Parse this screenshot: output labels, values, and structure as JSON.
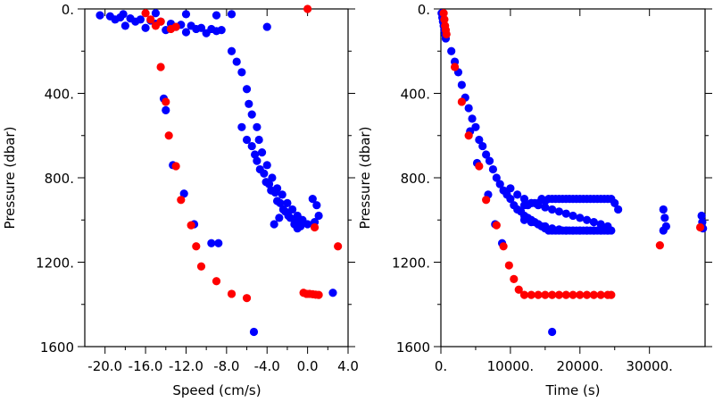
{
  "chart_data": [
    {
      "type": "scatter",
      "xlabel": "Speed (cm/s)",
      "ylabel": "Pressure (dbar)",
      "xlim": [
        -22.0,
        4.0
      ],
      "ylim": [
        0,
        1600
      ],
      "y_inverted": true,
      "x_tick_labels": [
        "-20.0",
        "-16.0",
        "-12.0",
        "-8.0",
        "-4.0",
        "0.0",
        "4.0"
      ],
      "x_tick_values": [
        -20,
        -16,
        -12,
        -8,
        -4,
        0,
        4
      ],
      "y_tick_labels": [
        "0.",
        "400.",
        "800.",
        "1200.",
        "1600"
      ],
      "y_tick_values": [
        0,
        400,
        800,
        1200,
        1600
      ],
      "grid": false,
      "series": [
        {
          "color": "#0000ff",
          "points": [
            [
              -20.5,
              30
            ],
            [
              -19.5,
              35
            ],
            [
              -18.5,
              40
            ],
            [
              -17.5,
              45
            ],
            [
              -16.5,
              50
            ],
            [
              -15.5,
              55
            ],
            [
              -14.5,
              60
            ],
            [
              -13.5,
              70
            ],
            [
              -12.5,
              75
            ],
            [
              -11.5,
              80
            ],
            [
              -10.5,
              90
            ],
            [
              -9.5,
              95
            ],
            [
              -8.5,
              100
            ],
            [
              -18,
              80
            ],
            [
              -16,
              90
            ],
            [
              -14,
              100
            ],
            [
              -12,
              110
            ],
            [
              -10,
              115
            ],
            [
              -17,
              60
            ],
            [
              -15,
              70
            ],
            [
              -13,
              85
            ],
            [
              -11,
              95
            ],
            [
              -9,
              105
            ],
            [
              -19,
              50
            ],
            [
              -18.2,
              25
            ],
            [
              -15,
              20
            ],
            [
              -12,
              25
            ],
            [
              -9,
              30
            ],
            [
              -7.5,
              25
            ],
            [
              -4,
              85
            ],
            [
              -14.2,
              425
            ],
            [
              -14.0,
              480
            ],
            [
              -13.3,
              740
            ],
            [
              -12.2,
              875
            ],
            [
              -11.2,
              1020
            ],
            [
              -9.5,
              1110
            ],
            [
              -8.8,
              1110
            ],
            [
              -5.3,
              1530
            ],
            [
              -7.5,
              200
            ],
            [
              -7.0,
              250
            ],
            [
              -6.5,
              300
            ],
            [
              -6.0,
              380
            ],
            [
              -5.8,
              450
            ],
            [
              -5.5,
              500
            ],
            [
              -5.0,
              560
            ],
            [
              -4.8,
              620
            ],
            [
              -4.5,
              680
            ],
            [
              -4.0,
              740
            ],
            [
              -3.5,
              800
            ],
            [
              -3.0,
              850
            ],
            [
              -2.5,
              880
            ],
            [
              -2.0,
              920
            ],
            [
              -1.5,
              950
            ],
            [
              -1.0,
              980
            ],
            [
              -0.5,
              1000
            ],
            [
              0.0,
              1020
            ],
            [
              -5.5,
              650
            ],
            [
              -5.0,
              720
            ],
            [
              -4.3,
              780
            ],
            [
              -3.8,
              830
            ],
            [
              -3.2,
              870
            ],
            [
              -2.7,
              920
            ],
            [
              -2.2,
              960
            ],
            [
              -1.7,
              990
            ],
            [
              -1.2,
              1010
            ],
            [
              -0.7,
              1030
            ],
            [
              -6.5,
              560
            ],
            [
              -6.0,
              620
            ],
            [
              -5.2,
              690
            ],
            [
              -4.7,
              760
            ],
            [
              -4.1,
              820
            ],
            [
              -3.6,
              860
            ],
            [
              -3.0,
              910
            ],
            [
              -2.4,
              950
            ],
            [
              -1.9,
              980
            ],
            [
              -1.3,
              1020
            ],
            [
              0.5,
              900
            ],
            [
              0.9,
              930
            ],
            [
              1.1,
              980
            ],
            [
              0.7,
              1010
            ],
            [
              -2.8,
              990
            ],
            [
              -3.3,
              1020
            ],
            [
              2.5,
              1345
            ],
            [
              -1.0,
              1040
            ]
          ]
        },
        {
          "color": "#ff0000",
          "points": [
            [
              -16,
              20
            ],
            [
              -15.5,
              50
            ],
            [
              -15,
              80
            ],
            [
              -14.5,
              60
            ],
            [
              -13.5,
              95
            ],
            [
              -13,
              85
            ],
            [
              -14.5,
              275
            ],
            [
              -14.0,
              440
            ],
            [
              -13.7,
              600
            ],
            [
              -13.0,
              745
            ],
            [
              -12.5,
              905
            ],
            [
              -11.5,
              1025
            ],
            [
              -11.0,
              1125
            ],
            [
              -10.5,
              1220
            ],
            [
              -9.0,
              1290
            ],
            [
              -7.5,
              1350
            ],
            [
              -6.0,
              1370
            ],
            [
              0.0,
              0
            ],
            [
              -0.4,
              1345
            ],
            [
              -0.1,
              1350
            ],
            [
              0.2,
              1350
            ],
            [
              0.5,
              1352
            ],
            [
              0.8,
              1354
            ],
            [
              1.1,
              1355
            ],
            [
              0.7,
              1035
            ],
            [
              3.0,
              1125
            ]
          ]
        }
      ]
    },
    {
      "type": "scatter",
      "xlabel": "Time (s)",
      "ylabel": "Pressure (dbar)",
      "xlim": [
        0,
        38000
      ],
      "ylim": [
        0,
        1600
      ],
      "y_inverted": true,
      "x_tick_labels": [
        "0.",
        "10000.",
        "20000.",
        "30000."
      ],
      "x_tick_values": [
        0,
        10000,
        20000,
        30000
      ],
      "y_tick_labels": [
        "0.",
        "400.",
        "800.",
        "1200.",
        "1600"
      ],
      "y_tick_values": [
        0,
        400,
        800,
        1200,
        1600
      ],
      "grid": false,
      "series": [
        {
          "color": "#0000ff",
          "points": [
            [
              100,
              20
            ],
            [
              200,
              40
            ],
            [
              300,
              60
            ],
            [
              400,
              80
            ],
            [
              500,
              100
            ],
            [
              600,
              120
            ],
            [
              700,
              140
            ],
            [
              1500,
              200
            ],
            [
              2000,
              250
            ],
            [
              2500,
              300
            ],
            [
              3000,
              360
            ],
            [
              3500,
              420
            ],
            [
              4000,
              470
            ],
            [
              4500,
              520
            ],
            [
              5000,
              560
            ],
            [
              5500,
              620
            ],
            [
              6000,
              650
            ],
            [
              6500,
              690
            ],
            [
              7000,
              720
            ],
            [
              7500,
              760
            ],
            [
              8000,
              800
            ],
            [
              8500,
              830
            ],
            [
              9000,
              860
            ],
            [
              9500,
              880
            ],
            [
              10000,
              900
            ],
            [
              10500,
              930
            ],
            [
              11000,
              950
            ],
            [
              11500,
              960
            ],
            [
              12000,
              980
            ],
            [
              12500,
              990
            ],
            [
              13000,
              1000
            ],
            [
              13500,
              1010
            ],
            [
              14000,
              1020
            ],
            [
              14500,
              1030
            ],
            [
              15000,
              1040
            ],
            [
              15500,
              1050
            ],
            [
              16000,
              1050
            ],
            [
              16500,
              1050
            ],
            [
              17000,
              1050
            ],
            [
              17500,
              1050
            ],
            [
              18000,
              1050
            ],
            [
              18500,
              1050
            ],
            [
              19000,
              1050
            ],
            [
              19500,
              1050
            ],
            [
              20000,
              1050
            ],
            [
              20500,
              1050
            ],
            [
              21000,
              1050
            ],
            [
              21500,
              1050
            ],
            [
              22000,
              1050
            ],
            [
              22500,
              1050
            ],
            [
              23000,
              1050
            ],
            [
              23500,
              1050
            ],
            [
              24000,
              1050
            ],
            [
              24500,
              1050
            ],
            [
              10000,
              850
            ],
            [
              11000,
              880
            ],
            [
              12000,
              900
            ],
            [
              13000,
              920
            ],
            [
              14000,
              930
            ],
            [
              15000,
              940
            ],
            [
              16000,
              950
            ],
            [
              17000,
              960
            ],
            [
              18000,
              970
            ],
            [
              19000,
              980
            ],
            [
              20000,
              990
            ],
            [
              21000,
              1000
            ],
            [
              22000,
              1010
            ],
            [
              23000,
              1020
            ],
            [
              24000,
              1030
            ],
            [
              12000,
              1000
            ],
            [
              13000,
              1010
            ],
            [
              14000,
              1020
            ],
            [
              15000,
              1030
            ],
            [
              16000,
              1040
            ],
            [
              17000,
              1045
            ],
            [
              18000,
              1050
            ],
            [
              19000,
              1050
            ],
            [
              20000,
              1050
            ],
            [
              21000,
              1050
            ],
            [
              22000,
              1050
            ],
            [
              23000,
              1050
            ],
            [
              24000,
              1050
            ],
            [
              25000,
              920
            ],
            [
              24500,
              900
            ],
            [
              24000,
              900
            ],
            [
              23500,
              900
            ],
            [
              23000,
              900
            ],
            [
              22500,
              900
            ],
            [
              22000,
              900
            ],
            [
              21500,
              900
            ],
            [
              21000,
              900
            ],
            [
              20500,
              900
            ],
            [
              20000,
              900
            ],
            [
              19500,
              900
            ],
            [
              19000,
              900
            ],
            [
              18500,
              900
            ],
            [
              18000,
              900
            ],
            [
              17500,
              900
            ],
            [
              17000,
              900
            ],
            [
              16500,
              900
            ],
            [
              16000,
              900
            ],
            [
              15500,
              900
            ],
            [
              15000,
              910
            ],
            [
              14500,
              900
            ],
            [
              14000,
              920
            ],
            [
              13500,
              920
            ],
            [
              13000,
              920
            ],
            [
              12500,
              930
            ],
            [
              12000,
              930
            ],
            [
              25500,
              950
            ],
            [
              32000,
              950
            ],
            [
              32200,
              990
            ],
            [
              32400,
              1030
            ],
            [
              32000,
              1050
            ],
            [
              37500,
              980
            ],
            [
              37600,
              1010
            ],
            [
              37700,
              1040
            ],
            [
              4200,
              580
            ],
            [
              5200,
              730
            ],
            [
              6800,
              880
            ],
            [
              7800,
              1020
            ],
            [
              8800,
              1110
            ],
            [
              16000,
              1530
            ]
          ]
        },
        {
          "color": "#ff0000",
          "points": [
            [
              400,
              20
            ],
            [
              500,
              50
            ],
            [
              600,
              80
            ],
            [
              700,
              100
            ],
            [
              800,
              120
            ],
            [
              2000,
              275
            ],
            [
              3000,
              440
            ],
            [
              4000,
              600
            ],
            [
              5500,
              745
            ],
            [
              6500,
              905
            ],
            [
              8000,
              1025
            ],
            [
              9000,
              1125
            ],
            [
              9800,
              1215
            ],
            [
              10500,
              1280
            ],
            [
              11200,
              1330
            ],
            [
              12000,
              1355
            ],
            [
              13000,
              1355
            ],
            [
              14000,
              1355
            ],
            [
              15000,
              1355
            ],
            [
              16000,
              1355
            ],
            [
              17000,
              1355
            ],
            [
              18000,
              1355
            ],
            [
              19000,
              1355
            ],
            [
              20000,
              1355
            ],
            [
              21000,
              1355
            ],
            [
              22000,
              1355
            ],
            [
              23000,
              1355
            ],
            [
              24000,
              1355
            ],
            [
              24500,
              1355
            ],
            [
              31500,
              1120
            ],
            [
              37300,
              1035
            ]
          ]
        }
      ]
    }
  ]
}
